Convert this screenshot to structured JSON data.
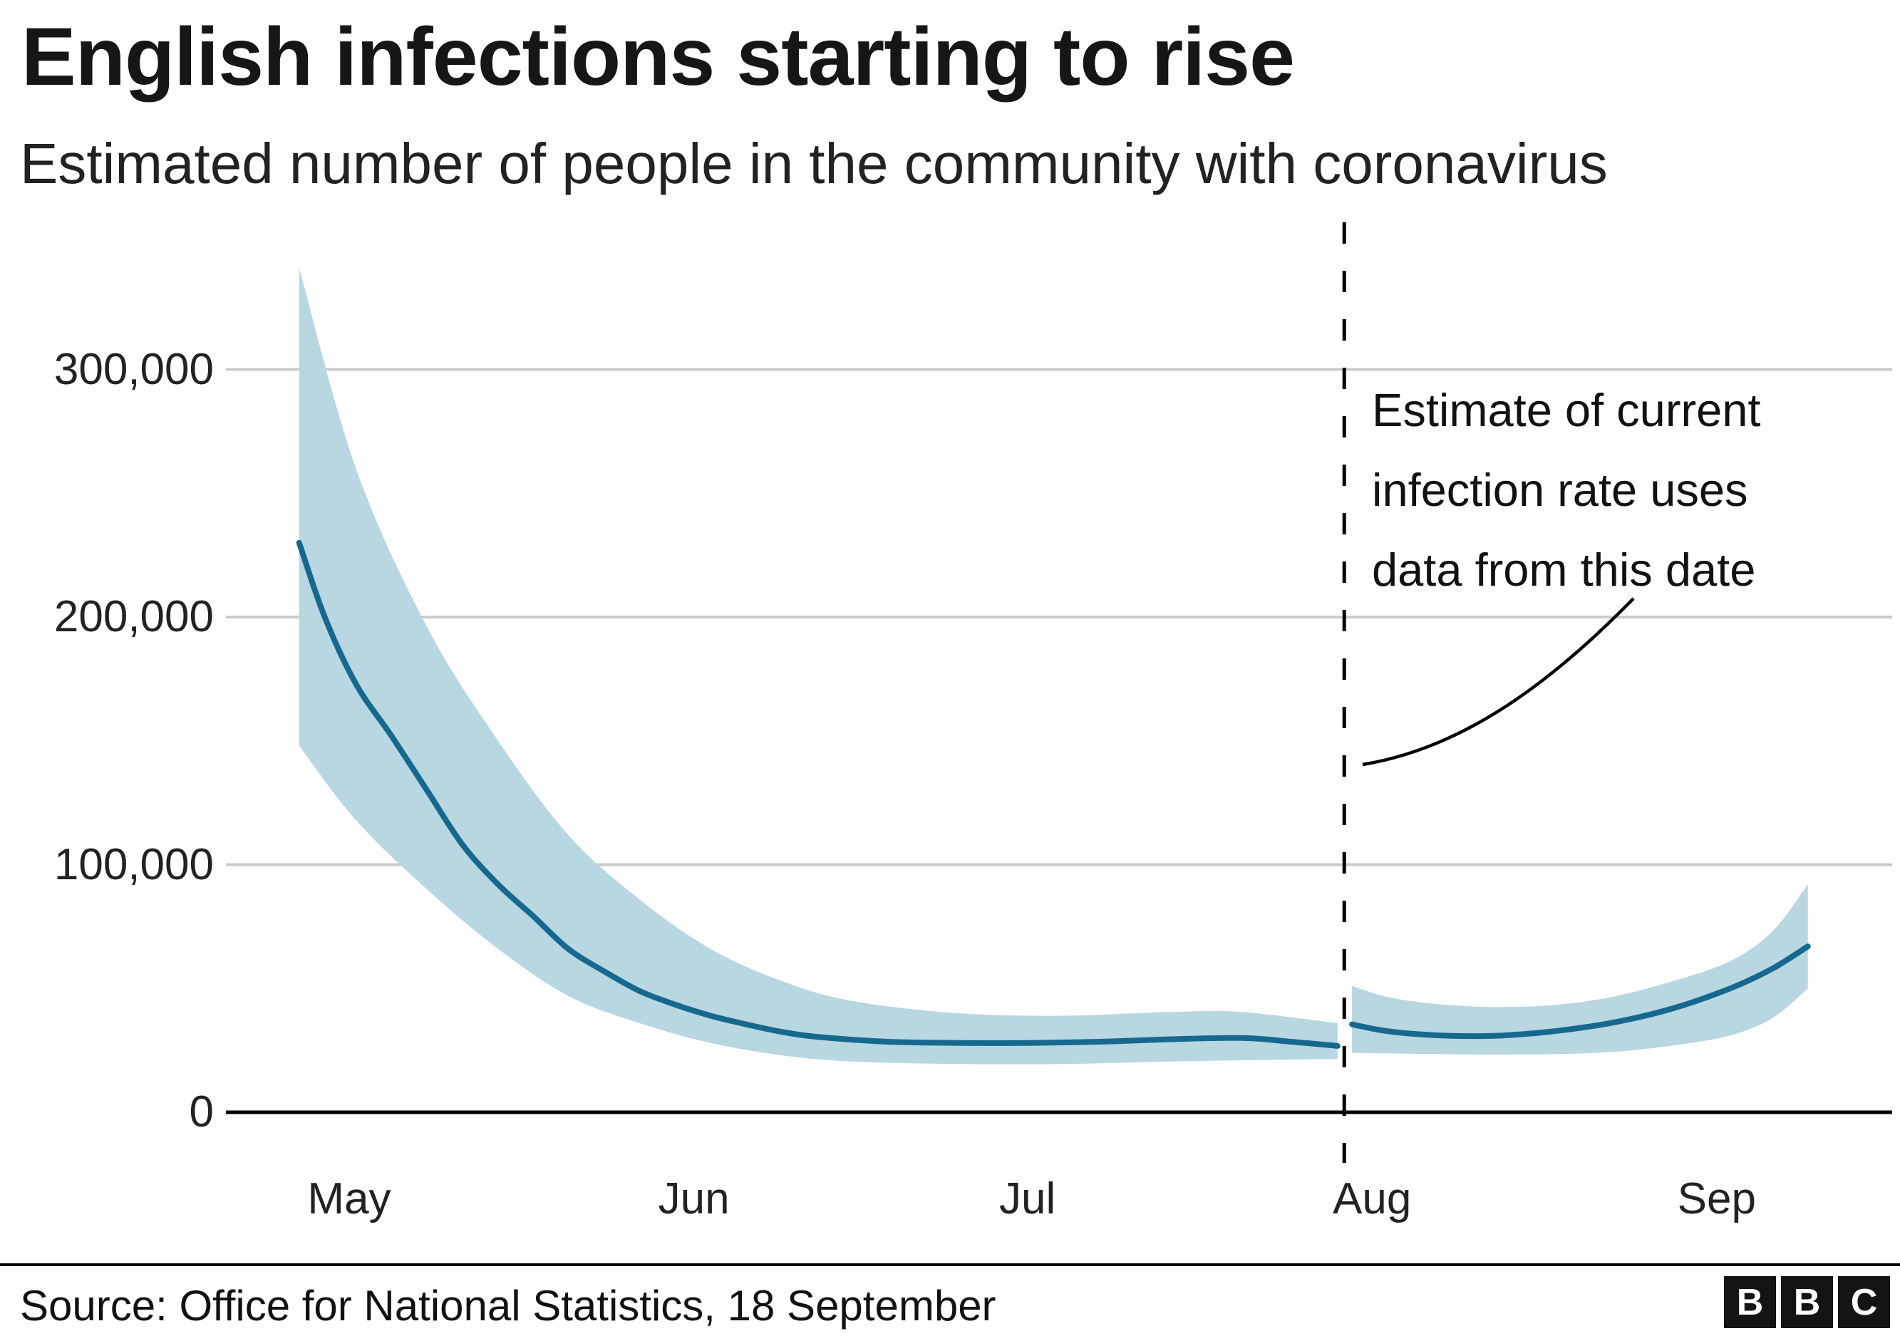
{
  "header": {
    "title": "English infections starting to rise",
    "subtitle": "Estimated number of people in the community with coronavirus"
  },
  "annotation": {
    "line1": "Estimate of current",
    "line2": "infection rate uses",
    "line3": "data from this date"
  },
  "footer": {
    "source": "Source: Office for National Statistics, 18 September",
    "logo": {
      "b1": "B",
      "b2": "B",
      "b3": "C"
    }
  },
  "chart_data": {
    "type": "line",
    "title": "English infections starting to rise",
    "subtitle": "Estimated number of people in the community with coronavirus",
    "x_unit": "days since 1 May",
    "ylim": [
      0,
      360000
    ],
    "grid": true,
    "legend": "none",
    "y_ticks": [
      {
        "value": 0,
        "label": "0"
      },
      {
        "value": 100000,
        "label": "100,000"
      },
      {
        "value": 200000,
        "label": "200,000"
      },
      {
        "value": 300000,
        "label": "300,000"
      }
    ],
    "x_ticks": [
      {
        "day": 0,
        "label": "May"
      },
      {
        "day": 31,
        "label": "Jun"
      },
      {
        "day": 61,
        "label": "Jul"
      },
      {
        "day": 92,
        "label": "Aug"
      },
      {
        "day": 123,
        "label": "Sep"
      }
    ],
    "dashed_marker_day": 89.5,
    "colors": {
      "line": "#16698e",
      "band": "#b9d7e1",
      "grid": "#cbcbcb",
      "axis": "#000000",
      "dashed": "#000000",
      "pointer": "#000000"
    },
    "series": [
      {
        "name": "central estimate (observed)",
        "type": "line",
        "points": [
          [
            -4.5,
            230000
          ],
          [
            -2.2,
            200000
          ],
          [
            0.6,
            173000
          ],
          [
            3.8,
            152000
          ],
          [
            7,
            130000
          ],
          [
            10.2,
            108000
          ],
          [
            13.4,
            92000
          ],
          [
            16.6,
            79000
          ],
          [
            19.7,
            66000
          ],
          [
            22.9,
            57000
          ],
          [
            26.1,
            49000
          ],
          [
            29.3,
            43500
          ],
          [
            32.5,
            39000
          ],
          [
            35.7,
            35500
          ],
          [
            38.9,
            32500
          ],
          [
            42,
            30500
          ],
          [
            48.4,
            28500
          ],
          [
            54.8,
            28000
          ],
          [
            61.1,
            28000
          ],
          [
            67.5,
            28500
          ],
          [
            73.9,
            29500
          ],
          [
            80.3,
            30000
          ],
          [
            84.7,
            28500
          ],
          [
            88.9,
            26800
          ]
        ]
      },
      {
        "name": "confidence interval (observed)",
        "type": "band",
        "upper": [
          [
            -4.5,
            341000
          ],
          [
            0.6,
            260000
          ],
          [
            7,
            196000
          ],
          [
            13.4,
            150000
          ],
          [
            19.7,
            112000
          ],
          [
            26.1,
            86000
          ],
          [
            32.5,
            66000
          ],
          [
            38.9,
            53000
          ],
          [
            45.2,
            45000
          ],
          [
            54.8,
            40000
          ],
          [
            64.3,
            39000
          ],
          [
            73.9,
            40500
          ],
          [
            80.3,
            40500
          ],
          [
            88.9,
            36000
          ]
        ],
        "lower": [
          [
            -4.5,
            148000
          ],
          [
            0.6,
            118000
          ],
          [
            7,
            90000
          ],
          [
            13.4,
            66000
          ],
          [
            19.7,
            47000
          ],
          [
            26.1,
            36000
          ],
          [
            32.5,
            28000
          ],
          [
            38.9,
            23000
          ],
          [
            45.2,
            20500
          ],
          [
            54.8,
            19500
          ],
          [
            64.3,
            19500
          ],
          [
            73.9,
            20500
          ],
          [
            80.3,
            21000
          ],
          [
            88.9,
            21500
          ]
        ]
      },
      {
        "name": "central estimate (current infection rate)",
        "type": "line",
        "points": [
          [
            90.2,
            35500
          ],
          [
            93,
            33000
          ],
          [
            96.2,
            31500
          ],
          [
            100,
            30800
          ],
          [
            103.8,
            31000
          ],
          [
            108.9,
            33000
          ],
          [
            114,
            36500
          ],
          [
            119.1,
            42000
          ],
          [
            124.2,
            50000
          ],
          [
            128,
            58000
          ],
          [
            131.2,
            67000
          ]
        ]
      },
      {
        "name": "confidence interval (current infection rate)",
        "type": "band",
        "upper": [
          [
            90.2,
            51000
          ],
          [
            93,
            47000
          ],
          [
            96.2,
            44500
          ],
          [
            100,
            43000
          ],
          [
            103.8,
            42500
          ],
          [
            108.9,
            43500
          ],
          [
            114,
            47000
          ],
          [
            119.1,
            53000
          ],
          [
            124.2,
            61000
          ],
          [
            128,
            73000
          ],
          [
            131.2,
            92000
          ]
        ],
        "lower": [
          [
            90.2,
            24000
          ],
          [
            93,
            23800
          ],
          [
            96.2,
            23600
          ],
          [
            100,
            23400
          ],
          [
            103.8,
            23300
          ],
          [
            108.9,
            23500
          ],
          [
            114,
            24500
          ],
          [
            119.1,
            27000
          ],
          [
            124.2,
            31000
          ],
          [
            128,
            38000
          ],
          [
            131.2,
            50000
          ]
        ]
      }
    ]
  }
}
